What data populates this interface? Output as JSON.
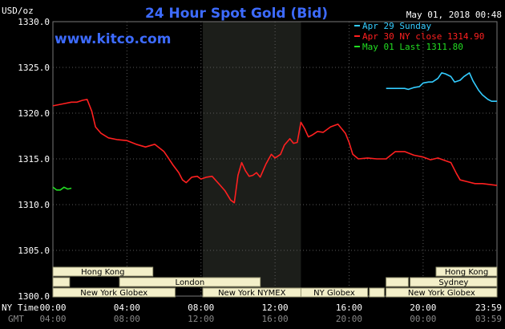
{
  "header": {
    "unit_label": "USD/oz",
    "title": "24 Hour Spot Gold (Bid)",
    "timestamp": "May 01, 2018 00:48",
    "watermark": "www.kitco.com"
  },
  "legend": [
    {
      "label": "Apr 29 Sunday",
      "color": "#33ccff"
    },
    {
      "label": "Apr 30 NY close 1314.90",
      "color": "#ff2020"
    },
    {
      "label": "May 01 Last 1311.80",
      "color": "#22dd22"
    }
  ],
  "axis_rows": {
    "ny_label": "NY Time",
    "gmt_label": "GMT",
    "ny_ticks": [
      "00:00",
      "04:00",
      "08:00",
      "12:00",
      "16:00",
      "20:00",
      "23:59"
    ],
    "gmt_ticks": [
      "04:00",
      "08:00",
      "12:00",
      "16:00",
      "20:00",
      "00:00",
      "03:59"
    ]
  },
  "sessions": [
    {
      "label": "Hong Kong",
      "start": 0.0,
      "end": 5.4
    },
    {
      "label": "Hong Kong",
      "start": 20.7,
      "end": 23.99
    },
    {
      "label": "London",
      "start": 3.6,
      "end": 11.2
    },
    {
      "label": "Sydney",
      "start": 19.3,
      "end": 23.99
    },
    {
      "label": "New York Globex",
      "start": 0.0,
      "end": 6.6
    },
    {
      "label": "New York NYMEX",
      "start": 8.1,
      "end": 13.4
    },
    {
      "label": "NY Globex",
      "start": 13.4,
      "end": 17.0
    },
    {
      "label": "New York Globex",
      "start": 18.0,
      "end": 23.99
    }
  ],
  "colors": {
    "background": "#000000",
    "grid": "#5a5a5a",
    "nymex_shade": "#1c1e1a",
    "session_box": "#f3efc9",
    "session_border": "#9c9a77"
  },
  "chart_data": {
    "type": "line",
    "title": "24 Hour Spot Gold (Bid)",
    "ylabel": "USD/oz",
    "xlabel": "NY Time",
    "xlim": [
      0,
      23.99
    ],
    "ylim": [
      1300,
      1330
    ],
    "yticks": [
      1300,
      1305,
      1310,
      1315,
      1320,
      1325,
      1330
    ],
    "xticks_hours": [
      0,
      4,
      8,
      12,
      16,
      20,
      23.99
    ],
    "nymex_shade_hours": [
      8.1,
      13.4
    ],
    "grid": true,
    "legend_position": "top-right",
    "series": [
      {
        "name": "Apr 29 Sunday",
        "color": "#33ccff",
        "x": [
          18.0,
          18.5,
          19.0,
          19.2,
          19.5,
          19.8,
          20.0,
          20.3,
          20.5,
          20.8,
          21.0,
          21.2,
          21.5,
          21.7,
          22.0,
          22.2,
          22.5,
          22.7,
          23.0,
          23.2,
          23.5,
          23.7,
          23.99
        ],
        "y": [
          1322.7,
          1322.7,
          1322.7,
          1322.6,
          1322.8,
          1322.9,
          1323.3,
          1323.4,
          1323.4,
          1323.8,
          1324.4,
          1324.3,
          1324.0,
          1323.4,
          1323.6,
          1324.0,
          1324.4,
          1323.5,
          1322.5,
          1322.0,
          1321.5,
          1321.3,
          1321.3
        ]
      },
      {
        "name": "Apr 30 NY close 1314.90",
        "color": "#ff2020",
        "x": [
          0.0,
          0.5,
          1.0,
          1.3,
          1.6,
          1.85,
          2.1,
          2.3,
          2.6,
          3.0,
          3.5,
          4.0,
          4.5,
          5.0,
          5.5,
          6.0,
          6.2,
          6.5,
          6.8,
          7.0,
          7.2,
          7.5,
          7.8,
          8.0,
          8.3,
          8.6,
          9.0,
          9.3,
          9.6,
          9.8,
          10.0,
          10.2,
          10.4,
          10.6,
          10.8,
          11.0,
          11.2,
          11.5,
          11.8,
          12.0,
          12.3,
          12.5,
          12.8,
          13.0,
          13.2,
          13.4,
          13.6,
          13.8,
          14.0,
          14.3,
          14.6,
          15.0,
          15.4,
          15.8,
          16.0,
          16.2,
          16.5,
          17.0,
          17.5,
          18.0,
          18.5,
          19.0,
          19.5,
          20.0,
          20.4,
          20.8,
          21.2,
          21.5,
          21.8,
          22.0,
          22.4,
          22.8,
          23.2,
          23.6,
          23.99
        ],
        "y": [
          1320.8,
          1321.0,
          1321.2,
          1321.2,
          1321.4,
          1321.5,
          1320.2,
          1318.5,
          1317.8,
          1317.3,
          1317.1,
          1317.0,
          1316.6,
          1316.3,
          1316.6,
          1315.8,
          1315.2,
          1314.3,
          1313.5,
          1312.7,
          1312.4,
          1313.0,
          1313.1,
          1312.8,
          1313.0,
          1313.1,
          1312.2,
          1311.5,
          1310.5,
          1310.2,
          1313.2,
          1314.6,
          1313.7,
          1313.1,
          1313.2,
          1313.5,
          1313.0,
          1314.4,
          1315.5,
          1315.1,
          1315.5,
          1316.5,
          1317.2,
          1316.7,
          1316.8,
          1319.0,
          1318.3,
          1317.4,
          1317.6,
          1318.0,
          1317.9,
          1318.5,
          1318.8,
          1317.8,
          1316.8,
          1315.5,
          1315.0,
          1315.1,
          1315.0,
          1315.0,
          1315.8,
          1315.8,
          1315.4,
          1315.2,
          1314.9,
          1315.1,
          1314.8,
          1314.6,
          1313.4,
          1312.7,
          1312.5,
          1312.3,
          1312.3,
          1312.2,
          1312.1
        ]
      },
      {
        "name": "May 01 Last 1311.80",
        "color": "#22dd22",
        "x": [
          0.0,
          0.2,
          0.4,
          0.6,
          0.8,
          1.0
        ],
        "y": [
          1311.9,
          1311.6,
          1311.6,
          1311.9,
          1311.7,
          1311.8
        ]
      }
    ]
  }
}
